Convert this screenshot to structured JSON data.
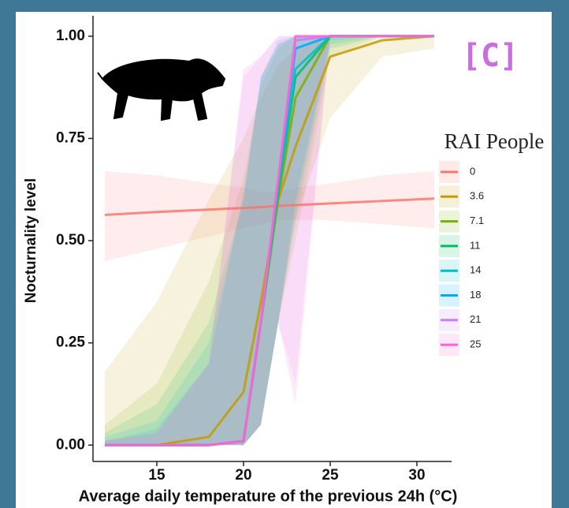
{
  "chart_data": {
    "type": "line",
    "annotation": "[C]",
    "xlabel": "Average daily temperature of the previous 24h (°C)",
    "ylabel": "Nocturnality level",
    "legend_title": "RAI People",
    "x": [
      12,
      15,
      18,
      20,
      21,
      22,
      23,
      25,
      28,
      31
    ],
    "xlim": [
      12,
      32
    ],
    "xticks": [
      15,
      20,
      25,
      30
    ],
    "ylim": [
      -0.04,
      1.05
    ],
    "yticks": [
      {
        "value": 0,
        "label": "0.00"
      },
      {
        "value": 0.25,
        "label": "0.25"
      },
      {
        "value": 0.5,
        "label": "0.50"
      },
      {
        "value": 0.75,
        "label": "0.75"
      },
      {
        "value": 1,
        "label": "1.00"
      }
    ],
    "series": [
      {
        "name": "0",
        "color": "#f8766d",
        "values": [
          0.563,
          0.57,
          0.576,
          0.58,
          0.582,
          0.585,
          0.587,
          0.591,
          0.597,
          0.603
        ],
        "lower": [
          0.45,
          0.48,
          0.51,
          0.53,
          0.54,
          0.55,
          0.55,
          0.55,
          0.54,
          0.53
        ],
        "upper": [
          0.67,
          0.66,
          0.64,
          0.63,
          0.62,
          0.62,
          0.63,
          0.64,
          0.66,
          0.67
        ]
      },
      {
        "name": "3.6",
        "color": "#c49a00",
        "values": [
          0,
          0,
          0.02,
          0.13,
          0.35,
          0.6,
          0.73,
          0.95,
          0.99,
          1
        ],
        "lower": [
          0,
          0,
          0,
          0,
          0.05,
          0.3,
          0.55,
          0.8,
          0.95,
          0.97
        ],
        "upper": [
          0.18,
          0.35,
          0.6,
          0.75,
          0.85,
          0.93,
          0.97,
          1,
          1,
          1
        ]
      },
      {
        "name": "7.1",
        "color": "#7cae00",
        "values": [
          0,
          0,
          0,
          0.01,
          0.3,
          0.6,
          0.85,
          1,
          1,
          1
        ],
        "lower": [
          0,
          0,
          0,
          0,
          0.05,
          0.3,
          0.5,
          0.95,
          1,
          1
        ],
        "upper": [
          0.05,
          0.15,
          0.4,
          0.65,
          0.88,
          0.97,
          1,
          1,
          1,
          1
        ]
      },
      {
        "name": "11",
        "color": "#00be67",
        "values": [
          0,
          0,
          0,
          0.01,
          0.3,
          0.62,
          0.9,
          1,
          1,
          1
        ],
        "lower": [
          0,
          0,
          0,
          0,
          0.05,
          0.3,
          0.55,
          0.97,
          1,
          1
        ],
        "upper": [
          0.03,
          0.1,
          0.3,
          0.6,
          0.9,
          0.98,
          1,
          1,
          1,
          1
        ]
      },
      {
        "name": "14",
        "color": "#00bfc4",
        "values": [
          0,
          0,
          0,
          0.01,
          0.3,
          0.63,
          0.92,
          1,
          1,
          1
        ],
        "lower": [
          0,
          0,
          0,
          0,
          0.05,
          0.3,
          0.58,
          0.98,
          1,
          1
        ],
        "upper": [
          0.02,
          0.06,
          0.25,
          0.6,
          0.9,
          0.98,
          1,
          1,
          1,
          1
        ]
      },
      {
        "name": "18",
        "color": "#00a9ff",
        "values": [
          0,
          0,
          0,
          0.01,
          0.3,
          0.64,
          0.97,
          1,
          1,
          1
        ],
        "lower": [
          0,
          0,
          0,
          0,
          0.05,
          0.3,
          0.6,
          0.99,
          1,
          1
        ],
        "upper": [
          0.01,
          0.04,
          0.2,
          0.62,
          0.9,
          0.99,
          1,
          1,
          1,
          1
        ]
      },
      {
        "name": "21",
        "color": "#c77cff",
        "values": [
          0,
          0,
          0,
          0.01,
          0.3,
          0.65,
          0.99,
          1,
          1,
          1
        ],
        "lower": [
          0,
          0,
          0,
          0,
          0.05,
          0.3,
          0.15,
          1,
          1,
          1
        ],
        "upper": [
          0.01,
          0.03,
          0.2,
          0.9,
          0.95,
          1,
          1,
          1,
          1,
          1
        ]
      },
      {
        "name": "25",
        "color": "#ff61cc",
        "values": [
          0,
          0,
          0,
          0.01,
          0.3,
          0.65,
          1,
          1,
          1,
          1
        ],
        "lower": [
          0,
          0,
          0,
          0,
          0.05,
          0.3,
          0.1,
          1,
          1,
          1
        ],
        "upper": [
          0.01,
          0.03,
          0.2,
          0.92,
          0.95,
          1,
          1,
          1,
          1,
          1
        ]
      }
    ]
  }
}
